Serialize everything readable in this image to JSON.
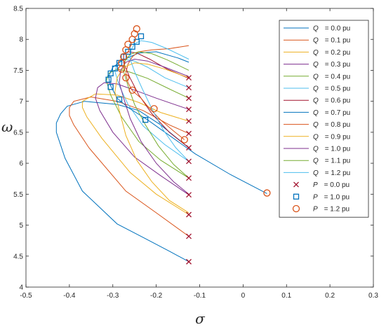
{
  "chart_data": {
    "type": "line",
    "xlabel": "σ",
    "ylabel": "ω",
    "xlim": [
      -0.5,
      0.3
    ],
    "ylim": [
      4,
      8.5
    ],
    "xticks": [
      "-0.5",
      "-0.4",
      "-0.3",
      "-0.2",
      "-0.1",
      "0",
      "0.1",
      "0.2",
      "0.3"
    ],
    "yticks": [
      "4",
      "4.5",
      "5",
      "5.5",
      "6",
      "6.5",
      "7",
      "7.5",
      "8",
      "8.5"
    ],
    "grid": false,
    "legend_position": "top-right",
    "series": [
      {
        "var": "Q",
        "value": "= 0.0 pu",
        "color": "#0072BD",
        "x": [
          -0.125,
          -0.17,
          -0.23,
          -0.29,
          -0.37,
          -0.41,
          -0.43,
          -0.43,
          -0.42,
          -0.405,
          -0.365,
          -0.29,
          -0.24,
          -0.19,
          -0.125
        ],
        "y": [
          4.41,
          4.58,
          4.8,
          5.02,
          5.55,
          6.08,
          6.5,
          6.65,
          6.8,
          6.92,
          7.0,
          6.95,
          6.85,
          6.62,
          6.25
        ]
      },
      {
        "var": "Q",
        "value": "= 0.1 pu",
        "color": "#D95319",
        "x": [
          -0.125,
          -0.2,
          -0.27,
          -0.355,
          -0.39,
          -0.4,
          -0.4,
          -0.39,
          -0.35,
          -0.29,
          -0.23,
          -0.17,
          -0.125
        ],
        "y": [
          4.82,
          5.2,
          5.55,
          6.25,
          6.62,
          6.77,
          6.9,
          7.0,
          7.07,
          7.0,
          6.85,
          6.62,
          6.48
        ]
      },
      {
        "var": "Q",
        "value": "= 0.2 pu",
        "color": "#EDB120",
        "x": [
          -0.125,
          -0.2,
          -0.26,
          -0.325,
          -0.36,
          -0.37,
          -0.37,
          -0.34,
          -0.29,
          -0.24,
          -0.19,
          -0.125
        ],
        "y": [
          5.17,
          5.5,
          5.85,
          6.4,
          6.75,
          6.9,
          7.0,
          7.12,
          7.1,
          6.98,
          6.82,
          6.68
        ]
      },
      {
        "var": "Q",
        "value": "= 0.3 pu",
        "color": "#7E2F8E",
        "x": [
          -0.125,
          -0.19,
          -0.25,
          -0.3,
          -0.33,
          -0.34,
          -0.335,
          -0.32,
          -0.29,
          -0.25,
          -0.2,
          -0.125
        ],
        "y": [
          5.49,
          5.8,
          6.1,
          6.5,
          6.85,
          7.05,
          7.22,
          7.3,
          7.28,
          7.18,
          7.05,
          6.87
        ]
      },
      {
        "var": "Q",
        "value": "= 0.4 pu",
        "color": "#77AC30",
        "x": [
          -0.125,
          -0.19,
          -0.24,
          -0.28,
          -0.305,
          -0.315,
          -0.31,
          -0.29,
          -0.26,
          -0.22,
          -0.17,
          -0.125
        ],
        "y": [
          5.76,
          6.05,
          6.35,
          6.75,
          7.1,
          7.33,
          7.45,
          7.52,
          7.47,
          7.37,
          7.2,
          7.05
        ]
      },
      {
        "var": "Q",
        "value": "= 0.5 pu",
        "color": "#4DBEEE",
        "x": [
          -0.125,
          -0.18,
          -0.23,
          -0.265,
          -0.285,
          -0.295,
          -0.29,
          -0.275,
          -0.25,
          -0.22,
          -0.18,
          -0.125
        ],
        "y": [
          6.03,
          6.3,
          6.6,
          6.95,
          7.25,
          7.48,
          7.62,
          7.68,
          7.65,
          7.55,
          7.38,
          7.22
        ]
      },
      {
        "var": "Q",
        "value": "= 0.6 pu",
        "color": "#A2142F",
        "x": [
          -0.125,
          -0.17,
          -0.21,
          -0.24,
          -0.262,
          -0.275,
          -0.275,
          -0.265,
          -0.245,
          -0.215,
          -0.175,
          -0.125
        ],
        "y": [
          6.25,
          6.5,
          6.8,
          7.1,
          7.4,
          7.62,
          7.75,
          7.8,
          7.78,
          7.68,
          7.52,
          7.37
        ]
      },
      {
        "var": "Q",
        "value": "= 0.7 pu",
        "color": "#0072BD",
        "x": [
          0.055,
          -0.03,
          -0.11,
          -0.17,
          -0.22,
          -0.265,
          -0.29,
          -0.305,
          -0.31,
          -0.3,
          -0.28,
          -0.26,
          -0.24,
          -0.2,
          -0.15,
          -0.125
        ],
        "y": [
          5.51,
          5.82,
          6.15,
          6.45,
          6.7,
          6.9,
          7.05,
          7.25,
          7.4,
          7.55,
          7.65,
          7.72,
          7.78,
          7.8,
          7.7,
          7.63
        ]
      },
      {
        "var": "Q",
        "value": "= 0.8 pu",
        "color": "#D95319",
        "x": [
          -0.135,
          -0.16,
          -0.19,
          -0.215,
          -0.235,
          -0.255,
          -0.265,
          -0.27,
          -0.265,
          -0.255,
          -0.24,
          -0.21,
          -0.17,
          -0.125
        ],
        "y": [
          6.38,
          6.52,
          6.7,
          6.88,
          7.05,
          7.17,
          7.3,
          7.45,
          7.6,
          7.72,
          7.8,
          7.83,
          7.85,
          7.9
        ]
      },
      {
        "var": "Q",
        "value": "= 0.9 pu",
        "color": "#EDB120",
        "x": [
          -0.125,
          -0.17,
          -0.21,
          -0.245,
          -0.27,
          -0.285,
          -0.295,
          -0.29,
          -0.275,
          -0.25,
          -0.22,
          -0.18,
          -0.125
        ],
        "y": [
          5.2,
          5.4,
          5.7,
          6.05,
          6.45,
          6.85,
          7.15,
          7.38,
          7.55,
          7.62,
          7.6,
          7.52,
          7.38
        ]
      },
      {
        "var": "Q",
        "value": "= 1.0 pu",
        "color": "#7E2F8E",
        "x": [
          -0.125,
          -0.16,
          -0.2,
          -0.235,
          -0.26,
          -0.275,
          -0.285,
          -0.282,
          -0.27,
          -0.25,
          -0.22,
          -0.18,
          -0.125
        ],
        "y": [
          5.5,
          5.7,
          6.0,
          6.35,
          6.72,
          7.05,
          7.3,
          7.5,
          7.63,
          7.68,
          7.65,
          7.55,
          7.4
        ]
      },
      {
        "var": "Q",
        "value": "= 1.1 pu",
        "color": "#77AC30",
        "x": [
          -0.125,
          -0.16,
          -0.195,
          -0.225,
          -0.25,
          -0.265,
          -0.275,
          -0.272,
          -0.26,
          -0.24,
          -0.21,
          -0.175,
          -0.125
        ],
        "y": [
          5.76,
          5.98,
          6.28,
          6.62,
          6.95,
          7.25,
          7.48,
          7.65,
          7.76,
          7.8,
          7.77,
          7.67,
          7.5
        ]
      },
      {
        "var": "Q",
        "value": "= 1.2 pu",
        "color": "#4DBEEE",
        "x": [
          -0.125,
          -0.155,
          -0.185,
          -0.21,
          -0.232,
          -0.25,
          -0.26,
          -0.258,
          -0.25,
          -0.235,
          -0.21,
          -0.175,
          -0.125
        ],
        "y": [
          6.03,
          6.25,
          6.55,
          6.88,
          7.2,
          7.48,
          7.68,
          7.83,
          7.93,
          7.98,
          7.95,
          7.85,
          7.68
        ]
      }
    ],
    "markers": [
      {
        "var": "P",
        "value": "= 0.0 pu",
        "shape": "x",
        "color": "#A2142F",
        "x": [
          -0.125,
          -0.125,
          -0.125,
          -0.125,
          -0.125,
          -0.125,
          -0.125,
          -0.125,
          -0.125,
          -0.125,
          -0.125,
          -0.125,
          -0.125
        ],
        "y": [
          7.38,
          7.22,
          7.05,
          6.87,
          6.68,
          6.48,
          6.25,
          6.03,
          5.76,
          5.49,
          5.17,
          4.82,
          4.41
        ]
      },
      {
        "var": "P",
        "value": "= 1.0 pu",
        "shape": "square",
        "color": "#0072BD",
        "x": [
          -0.225,
          -0.285,
          -0.305,
          -0.31,
          -0.305,
          -0.295,
          -0.285,
          -0.275,
          -0.265,
          -0.255,
          -0.245,
          -0.235
        ],
        "y": [
          6.7,
          7.03,
          7.23,
          7.35,
          7.45,
          7.53,
          7.62,
          7.72,
          7.8,
          7.88,
          7.96,
          8.05
        ]
      },
      {
        "var": "P",
        "value": "= 1.2 pu",
        "shape": "circle",
        "color": "#D95319",
        "x": [
          0.055,
          -0.135,
          -0.205,
          -0.255,
          -0.27,
          -0.28,
          -0.28,
          -0.275,
          -0.27,
          -0.265,
          -0.255,
          -0.25,
          -0.245
        ],
        "y": [
          5.52,
          6.38,
          6.88,
          7.18,
          7.38,
          7.52,
          7.62,
          7.72,
          7.83,
          7.92,
          8.0,
          8.09,
          8.17
        ]
      }
    ]
  }
}
